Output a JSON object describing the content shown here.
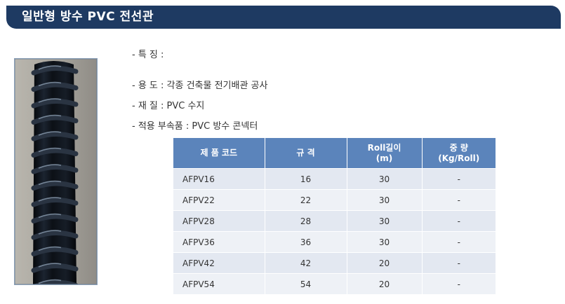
{
  "header": {
    "title": "일반형 방수 PVC 전선관"
  },
  "specs": {
    "features": "- 특 징 :",
    "usage": "- 용 도 : 각종 건축물 전기배관 공사",
    "material": "- 재 질 : PVC 수지",
    "accessory": "- 적용 부속품 : PVC 방수 콘넥터"
  },
  "table": {
    "headers": [
      {
        "line1": "제 품 코드",
        "line2": ""
      },
      {
        "line1": "규    격",
        "line2": ""
      },
      {
        "line1": "Roll길이",
        "line2": "(m)"
      },
      {
        "line1": "중  량",
        "line2": "(Kg/Roll)"
      }
    ],
    "rows": [
      {
        "code": "AFPV16",
        "size": "16",
        "roll": "30",
        "weight": "-"
      },
      {
        "code": "AFPV22",
        "size": "22",
        "roll": "30",
        "weight": "-"
      },
      {
        "code": "AFPV28",
        "size": "28",
        "roll": "30",
        "weight": "-"
      },
      {
        "code": "AFPV36",
        "size": "36",
        "roll": "30",
        "weight": "-"
      },
      {
        "code": "AFPV42",
        "size": "42",
        "roll": "20",
        "weight": "-"
      },
      {
        "code": "AFPV54",
        "size": "54",
        "roll": "20",
        "weight": "-"
      }
    ]
  }
}
